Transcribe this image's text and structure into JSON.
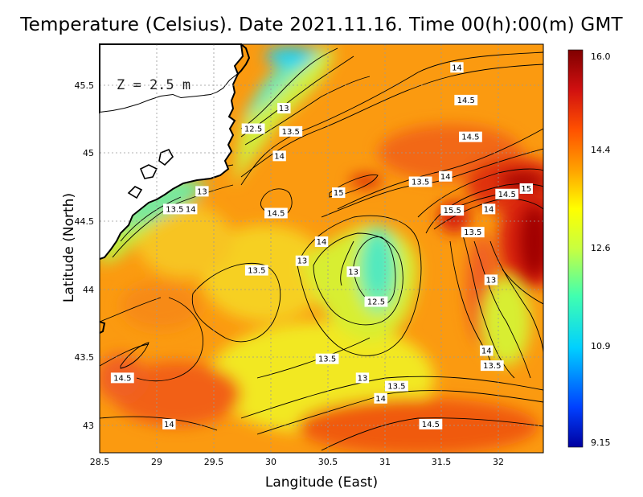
{
  "title": "Temperature (Celsius). Date 2021.11.16. Time 00(h):00(m) GMT",
  "depth_label": "Z = 2.5 m",
  "chart_data": {
    "type": "heatmap",
    "variable": "Temperature (Celsius)",
    "xlabel": "Langitude (East)",
    "ylabel": "Latitude (North)",
    "xlim": [
      28.5,
      32.4
    ],
    "ylim": [
      42.8,
      45.8
    ],
    "x_ticks": [
      "28.5",
      "29",
      "29.5",
      "30",
      "30.5",
      "31",
      "31.5",
      "32"
    ],
    "y_ticks": [
      "43",
      "43.5",
      "44",
      "44.5",
      "45",
      "45.5"
    ],
    "colorbar": {
      "min": 9.15,
      "max": 16.0,
      "labels": [
        "16.0",
        "14.4",
        "12.6",
        "10.9",
        "9.15"
      ],
      "colors": [
        "#0000a0",
        "#0040ff",
        "#00d0ff",
        "#40ffb0",
        "#c8ff40",
        "#ffff00",
        "#ffa000",
        "#ff5000",
        "#d01010",
        "#800000"
      ]
    },
    "contour_labels": [
      {
        "text": "14",
        "lon": 31.64,
        "lat": 45.63
      },
      {
        "text": "14.5",
        "lon": 31.72,
        "lat": 45.39
      },
      {
        "text": "13",
        "lon": 30.12,
        "lat": 45.33
      },
      {
        "text": "12.5",
        "lon": 29.85,
        "lat": 45.18
      },
      {
        "text": "13.5",
        "lon": 30.18,
        "lat": 45.16
      },
      {
        "text": "14.5",
        "lon": 31.76,
        "lat": 45.12
      },
      {
        "text": "14",
        "lon": 30.08,
        "lat": 44.98
      },
      {
        "text": "14",
        "lon": 31.54,
        "lat": 44.83
      },
      {
        "text": "13.5",
        "lon": 31.32,
        "lat": 44.79
      },
      {
        "text": "15",
        "lon": 30.6,
        "lat": 44.71
      },
      {
        "text": "14.5",
        "lon": 32.08,
        "lat": 44.7
      },
      {
        "text": "15",
        "lon": 32.25,
        "lat": 44.74
      },
      {
        "text": "13",
        "lon": 29.4,
        "lat": 44.72
      },
      {
        "text": "13.5",
        "lon": 29.16,
        "lat": 44.59
      },
      {
        "text": "14",
        "lon": 29.3,
        "lat": 44.59
      },
      {
        "text": "14.5",
        "lon": 30.05,
        "lat": 44.56
      },
      {
        "text": "15.5",
        "lon": 31.6,
        "lat": 44.58
      },
      {
        "text": "14",
        "lon": 31.92,
        "lat": 44.59
      },
      {
        "text": "13.5",
        "lon": 31.78,
        "lat": 44.42
      },
      {
        "text": "14",
        "lon": 30.45,
        "lat": 44.35
      },
      {
        "text": "13",
        "lon": 30.28,
        "lat": 44.21
      },
      {
        "text": "13.5",
        "lon": 29.88,
        "lat": 44.14
      },
      {
        "text": "13",
        "lon": 30.73,
        "lat": 44.13
      },
      {
        "text": "13",
        "lon": 31.94,
        "lat": 44.07
      },
      {
        "text": "12.5",
        "lon": 30.93,
        "lat": 43.91
      },
      {
        "text": "14",
        "lon": 31.9,
        "lat": 43.55
      },
      {
        "text": "13.5",
        "lon": 30.5,
        "lat": 43.49
      },
      {
        "text": "13.5",
        "lon": 31.95,
        "lat": 43.44
      },
      {
        "text": "14.5",
        "lon": 28.7,
        "lat": 43.35
      },
      {
        "text": "13",
        "lon": 30.81,
        "lat": 43.35
      },
      {
        "text": "13.5",
        "lon": 31.11,
        "lat": 43.29
      },
      {
        "text": "14",
        "lon": 30.97,
        "lat": 43.2
      },
      {
        "text": "14.5",
        "lon": 31.41,
        "lat": 43.01
      },
      {
        "text": "14",
        "lon": 29.11,
        "lat": 43.01
      }
    ]
  }
}
